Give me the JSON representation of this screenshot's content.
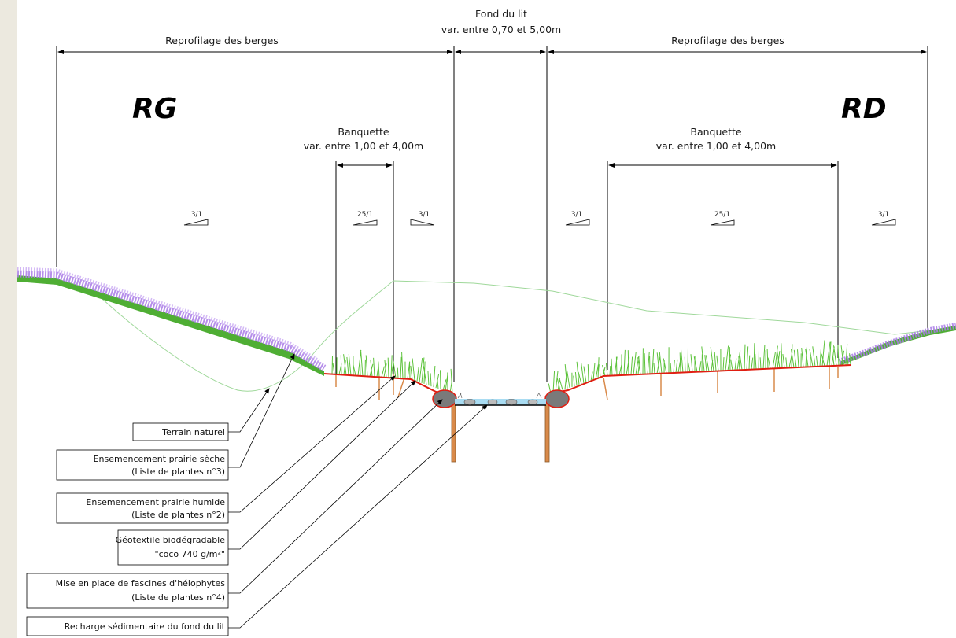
{
  "title_fragment": "",
  "dimensions": {
    "left_reprofile": "Reprofilage des berges",
    "right_reprofile": "Reprofilage des berges",
    "bed_title": "Fond du lit",
    "bed_range": "var. entre 0,70 et 5,00m",
    "left_banquette_title": "Banquette",
    "left_banquette_range": "var. entre 1,00 et 4,00m",
    "right_banquette_title": "Banquette",
    "right_banquette_range": "var. entre 1,00 et 4,00m"
  },
  "banks": {
    "left": "RG",
    "right": "RD"
  },
  "slopes": [
    "3/1",
    "25/1",
    "3/1",
    "3/1",
    "25/1",
    "3/1"
  ],
  "legend": [
    {
      "line1": "Terrain naturel",
      "line2": ""
    },
    {
      "line1": "Ensemencement prairie sèche",
      "line2": "(Liste de plantes n°3)"
    },
    {
      "line1": "Ensemencement prairie humide",
      "line2": "(Liste de plantes n°2)"
    },
    {
      "line1": "Géotextile biodégradable",
      "line2": "\"coco 740 g/m²\""
    },
    {
      "line1": "Mise en place de fascines d'hélophytes",
      "line2": "(Liste de plantes n°4)"
    },
    {
      "line1": "Recharge sédimentaire du fond du lit",
      "line2": ""
    }
  ],
  "colors": {
    "geotextile": "#e01e12",
    "dry_meadow": "#a97be6",
    "wet_meadow": "#5cc23a",
    "stakes": "#d98a4a",
    "water": "#a9dcf2",
    "natural_terrain": "#9fd89a"
  }
}
